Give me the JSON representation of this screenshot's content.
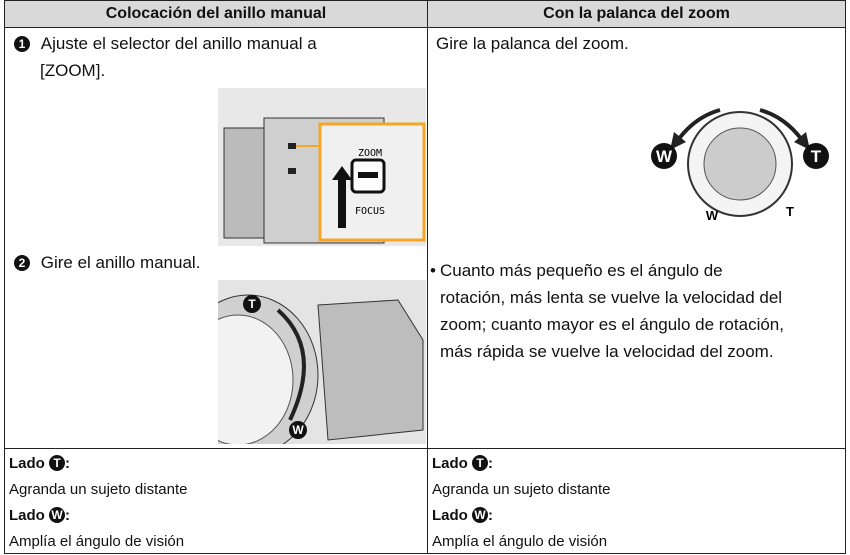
{
  "table": {
    "headers": [
      "Colocación del anillo manual",
      "Con la palanca del zoom"
    ],
    "left": {
      "steps": [
        {
          "number": "1",
          "lines": [
            "Ajuste el selector del anillo manual a",
            "[ZOOM]."
          ]
        },
        {
          "number": "2",
          "lines": [
            "Gire el anillo manual."
          ]
        }
      ],
      "switch_labels": [
        "ZOOM",
        "FOCUS"
      ],
      "ring_icons": [
        "T",
        "W"
      ]
    },
    "right": {
      "text": "Gire la palanca del zoom.",
      "lever_icons": [
        "W",
        "T"
      ],
      "lever_marks": [
        "W",
        "T"
      ],
      "bullet_mark": "•",
      "bullet_lines": [
        "Cuanto más pequeño es el ángulo de",
        "rotación, más lenta se vuelve la velocidad del",
        "zoom; cuanto mayor es el ángulo de rotación,",
        "más rápida se vuelve la velocidad del zoom."
      ]
    },
    "footer": [
      [
        {
          "label": "Lado",
          "icon": "T",
          "colon": ":",
          "text": "Agranda un sujeto distante"
        },
        {
          "label": "Lado",
          "icon": "W",
          "colon": ":",
          "text": "Amplía el ángulo de visión"
        }
      ],
      [
        {
          "label": "Lado",
          "icon": "T",
          "colon": ":",
          "text": "Agranda un sujeto distante"
        },
        {
          "label": "Lado",
          "icon": "W",
          "colon": ":",
          "text": "Amplía el ángulo de visión"
        }
      ]
    ]
  }
}
